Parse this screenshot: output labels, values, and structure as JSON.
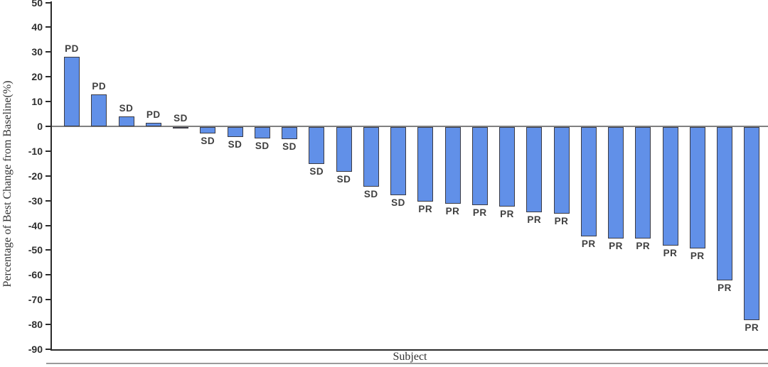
{
  "chart_data": {
    "type": "bar",
    "variant": "waterfall",
    "title": "",
    "xlabel": "Subject",
    "ylabel": "Percentage of Best Change from Baseline(%)",
    "ylim": [
      -90,
      50
    ],
    "yticks": [
      50,
      40,
      30,
      20,
      10,
      0,
      -10,
      -20,
      -30,
      -40,
      -50,
      -60,
      -70,
      -80,
      -90
    ],
    "grid": false,
    "legend": "none",
    "bar_count": 26,
    "bars": [
      {
        "response": "PD",
        "value": 28
      },
      {
        "response": "PD",
        "value": 13
      },
      {
        "response": "SD",
        "value": 4
      },
      {
        "response": "PD",
        "value": 1.5
      },
      {
        "response": "SD",
        "value": 0
      },
      {
        "response": "SD",
        "value": -2.5
      },
      {
        "response": "SD",
        "value": -4
      },
      {
        "response": "SD",
        "value": -4.5
      },
      {
        "response": "SD",
        "value": -5
      },
      {
        "response": "SD",
        "value": -15
      },
      {
        "response": "SD",
        "value": -18
      },
      {
        "response": "SD",
        "value": -24
      },
      {
        "response": "SD",
        "value": -27.5
      },
      {
        "response": "PR",
        "value": -30
      },
      {
        "response": "PR",
        "value": -31
      },
      {
        "response": "PR",
        "value": -31.5
      },
      {
        "response": "PR",
        "value": -32
      },
      {
        "response": "PR",
        "value": -34.5
      },
      {
        "response": "PR",
        "value": -35
      },
      {
        "response": "PR",
        "value": -44
      },
      {
        "response": "PR",
        "value": -45
      },
      {
        "response": "PR",
        "value": -45
      },
      {
        "response": "PR",
        "value": -48
      },
      {
        "response": "PR",
        "value": -49
      },
      {
        "response": "PR",
        "value": -62
      },
      {
        "response": "PR",
        "value": -78
      }
    ],
    "colors": {
      "bar_fill": "#6190e8",
      "bar_border": "#3b3b44",
      "axis": "#2b2b2b",
      "zero_line": "#808080",
      "text": "#2e2e2e"
    }
  }
}
